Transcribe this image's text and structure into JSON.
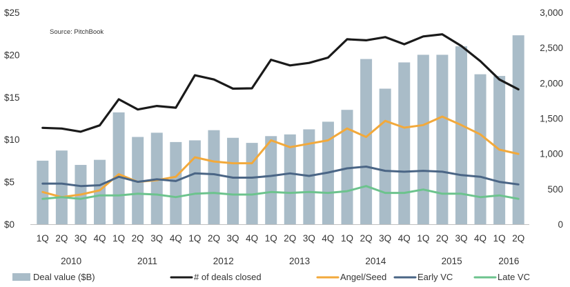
{
  "chart_data": {
    "type": "bar",
    "source": "Source: PitchBook",
    "categories": [
      "1Q",
      "2Q",
      "3Q",
      "4Q",
      "1Q",
      "2Q",
      "3Q",
      "4Q",
      "1Q",
      "2Q",
      "3Q",
      "4Q",
      "1Q",
      "2Q",
      "3Q",
      "4Q",
      "1Q",
      "2Q",
      "3Q",
      "4Q",
      "1Q",
      "2Q",
      "3Q",
      "4Q",
      "1Q",
      "2Q"
    ],
    "years": [
      "2010",
      "2011",
      "2012",
      "2013",
      "2014",
      "2015",
      "2016"
    ],
    "quarters_per_year": 4,
    "left_axis": {
      "ylim": [
        0,
        25
      ],
      "ticks": [
        0,
        5,
        10,
        15,
        20,
        25
      ],
      "tick_labels": [
        "$0",
        "$5",
        "$10",
        "$15",
        "$20",
        "$25"
      ]
    },
    "right_axis": {
      "ylim": [
        0,
        3000
      ],
      "ticks": [
        0,
        500,
        1000,
        1500,
        2000,
        2500,
        3000
      ],
      "tick_labels": [
        "0",
        "500",
        "1,000",
        "1,500",
        "2,000",
        "2,500",
        "3,000"
      ]
    },
    "grid": false,
    "legend_position": "bottom",
    "bar_series": {
      "name": "Deal value ($B)",
      "axis": "left",
      "color": "#a9bcc8",
      "values": [
        7.5,
        8.7,
        7.0,
        7.6,
        13.2,
        10.3,
        10.8,
        9.7,
        9.9,
        11.1,
        10.2,
        9.6,
        10.4,
        10.6,
        11.2,
        12.1,
        13.5,
        19.5,
        16.0,
        19.1,
        20.0,
        20.0,
        21.0,
        17.7,
        17.5,
        22.3
      ]
    },
    "series": [
      {
        "name": "# of deals closed",
        "axis": "right",
        "color": "#1a1a1a",
        "width": 3.2,
        "values": [
          1365,
          1355,
          1310,
          1400,
          1770,
          1625,
          1675,
          1650,
          2110,
          2050,
          1920,
          1925,
          2330,
          2250,
          2285,
          2360,
          2620,
          2605,
          2650,
          2550,
          2660,
          2690,
          2525,
          2310,
          2050,
          1910
        ]
      },
      {
        "name": "Angel/Seed",
        "axis": "left",
        "color": "#f2a93b",
        "width": 3,
        "values": [
          3.8,
          3.2,
          3.5,
          4.0,
          5.9,
          5.0,
          5.2,
          5.6,
          7.9,
          7.4,
          7.2,
          7.2,
          9.9,
          9.1,
          9.5,
          9.9,
          11.3,
          10.3,
          12.2,
          11.4,
          11.7,
          12.7,
          11.7,
          10.6,
          8.8,
          8.3
        ]
      },
      {
        "name": "Early VC",
        "axis": "left",
        "color": "#4a6585",
        "width": 3,
        "values": [
          4.8,
          4.8,
          4.5,
          4.6,
          5.6,
          5.0,
          5.3,
          5.1,
          6.0,
          5.9,
          5.5,
          5.5,
          5.7,
          6.0,
          5.7,
          6.1,
          6.6,
          6.8,
          6.3,
          6.2,
          6.3,
          6.2,
          5.8,
          5.6,
          5.0,
          4.7
        ]
      },
      {
        "name": "Late VC",
        "axis": "left",
        "color": "#6cc38d",
        "width": 3,
        "values": [
          3.0,
          3.2,
          3.0,
          3.4,
          3.4,
          3.6,
          3.5,
          3.2,
          3.6,
          3.7,
          3.5,
          3.5,
          3.8,
          3.7,
          3.8,
          3.7,
          3.9,
          4.5,
          3.7,
          3.7,
          4.1,
          3.6,
          3.6,
          3.2,
          3.4,
          3.0
        ]
      }
    ],
    "legend": [
      "Deal value ($B)",
      "# of deals closed",
      "Angel/Seed",
      "Early VC",
      "Late VC"
    ]
  }
}
